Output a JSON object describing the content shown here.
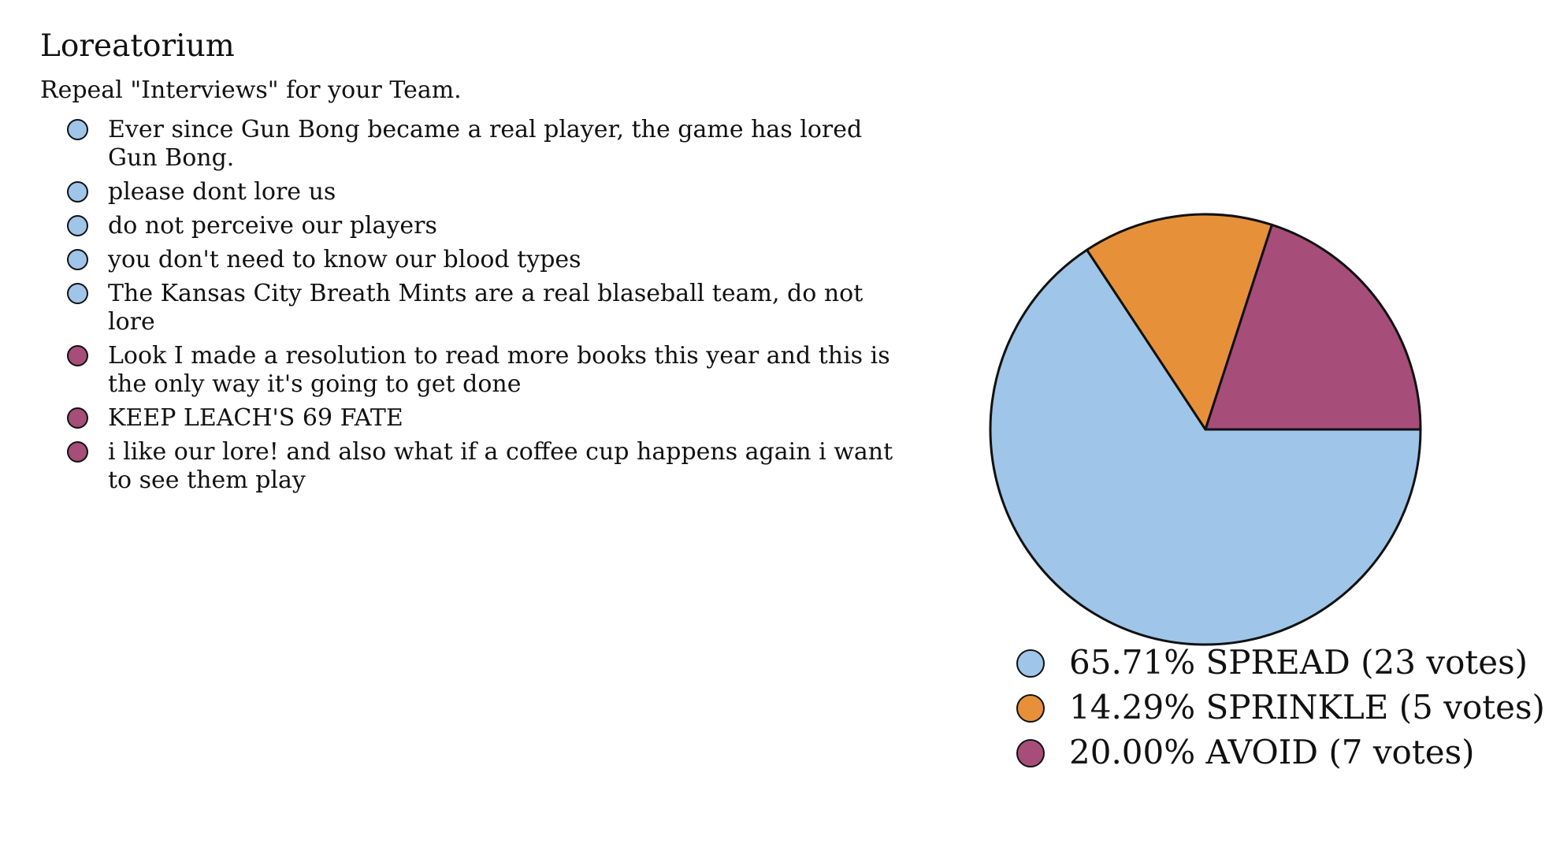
{
  "title": "Loreatorium",
  "subtitle": "Repeal \"Interviews\" for your Team.",
  "colors": {
    "spread": "#9fc5e8",
    "sprinkle": "#e6913a",
    "avoid": "#a64d79",
    "outline": "#111111"
  },
  "reasons": [
    {
      "text": "Ever since Gun Bong became a real player, the game has lored Gun Bong.",
      "color": "#9fc5e8"
    },
    {
      "text": "please dont lore us",
      "color": "#9fc5e8"
    },
    {
      "text": "do not perceive our players",
      "color": "#9fc5e8"
    },
    {
      "text": "you don't need to know our blood types",
      "color": "#9fc5e8"
    },
    {
      "text": "The Kansas City Breath Mints are a real blaseball team, do not lore",
      "color": "#9fc5e8"
    },
    {
      "text": "Look I made a resolution to read more books this year and this is the only way it's going to get done",
      "color": "#a64d79"
    },
    {
      "text": "KEEP LEACH'S 69 FATE",
      "color": "#a64d79"
    },
    {
      "text": "i like our lore! and also what if a coffee cup happens again i want to see them play",
      "color": "#a64d79"
    }
  ],
  "chart_data": {
    "type": "pie",
    "title": "",
    "start_angle_deg": 0,
    "direction": "clockwise",
    "slices": [
      {
        "label": "SPREAD",
        "votes": 23,
        "percent": 65.71,
        "color": "#9fc5e8",
        "legend_text": "65.71% SPREAD (23 votes)"
      },
      {
        "label": "SPRINKLE",
        "votes": 5,
        "percent": 14.29,
        "color": "#e6913a",
        "legend_text": "14.29% SPRINKLE (5 votes)"
      },
      {
        "label": "AVOID",
        "votes": 7,
        "percent": 20.0,
        "color": "#a64d79",
        "legend_text": "20.00% AVOID (7 votes)"
      }
    ]
  }
}
